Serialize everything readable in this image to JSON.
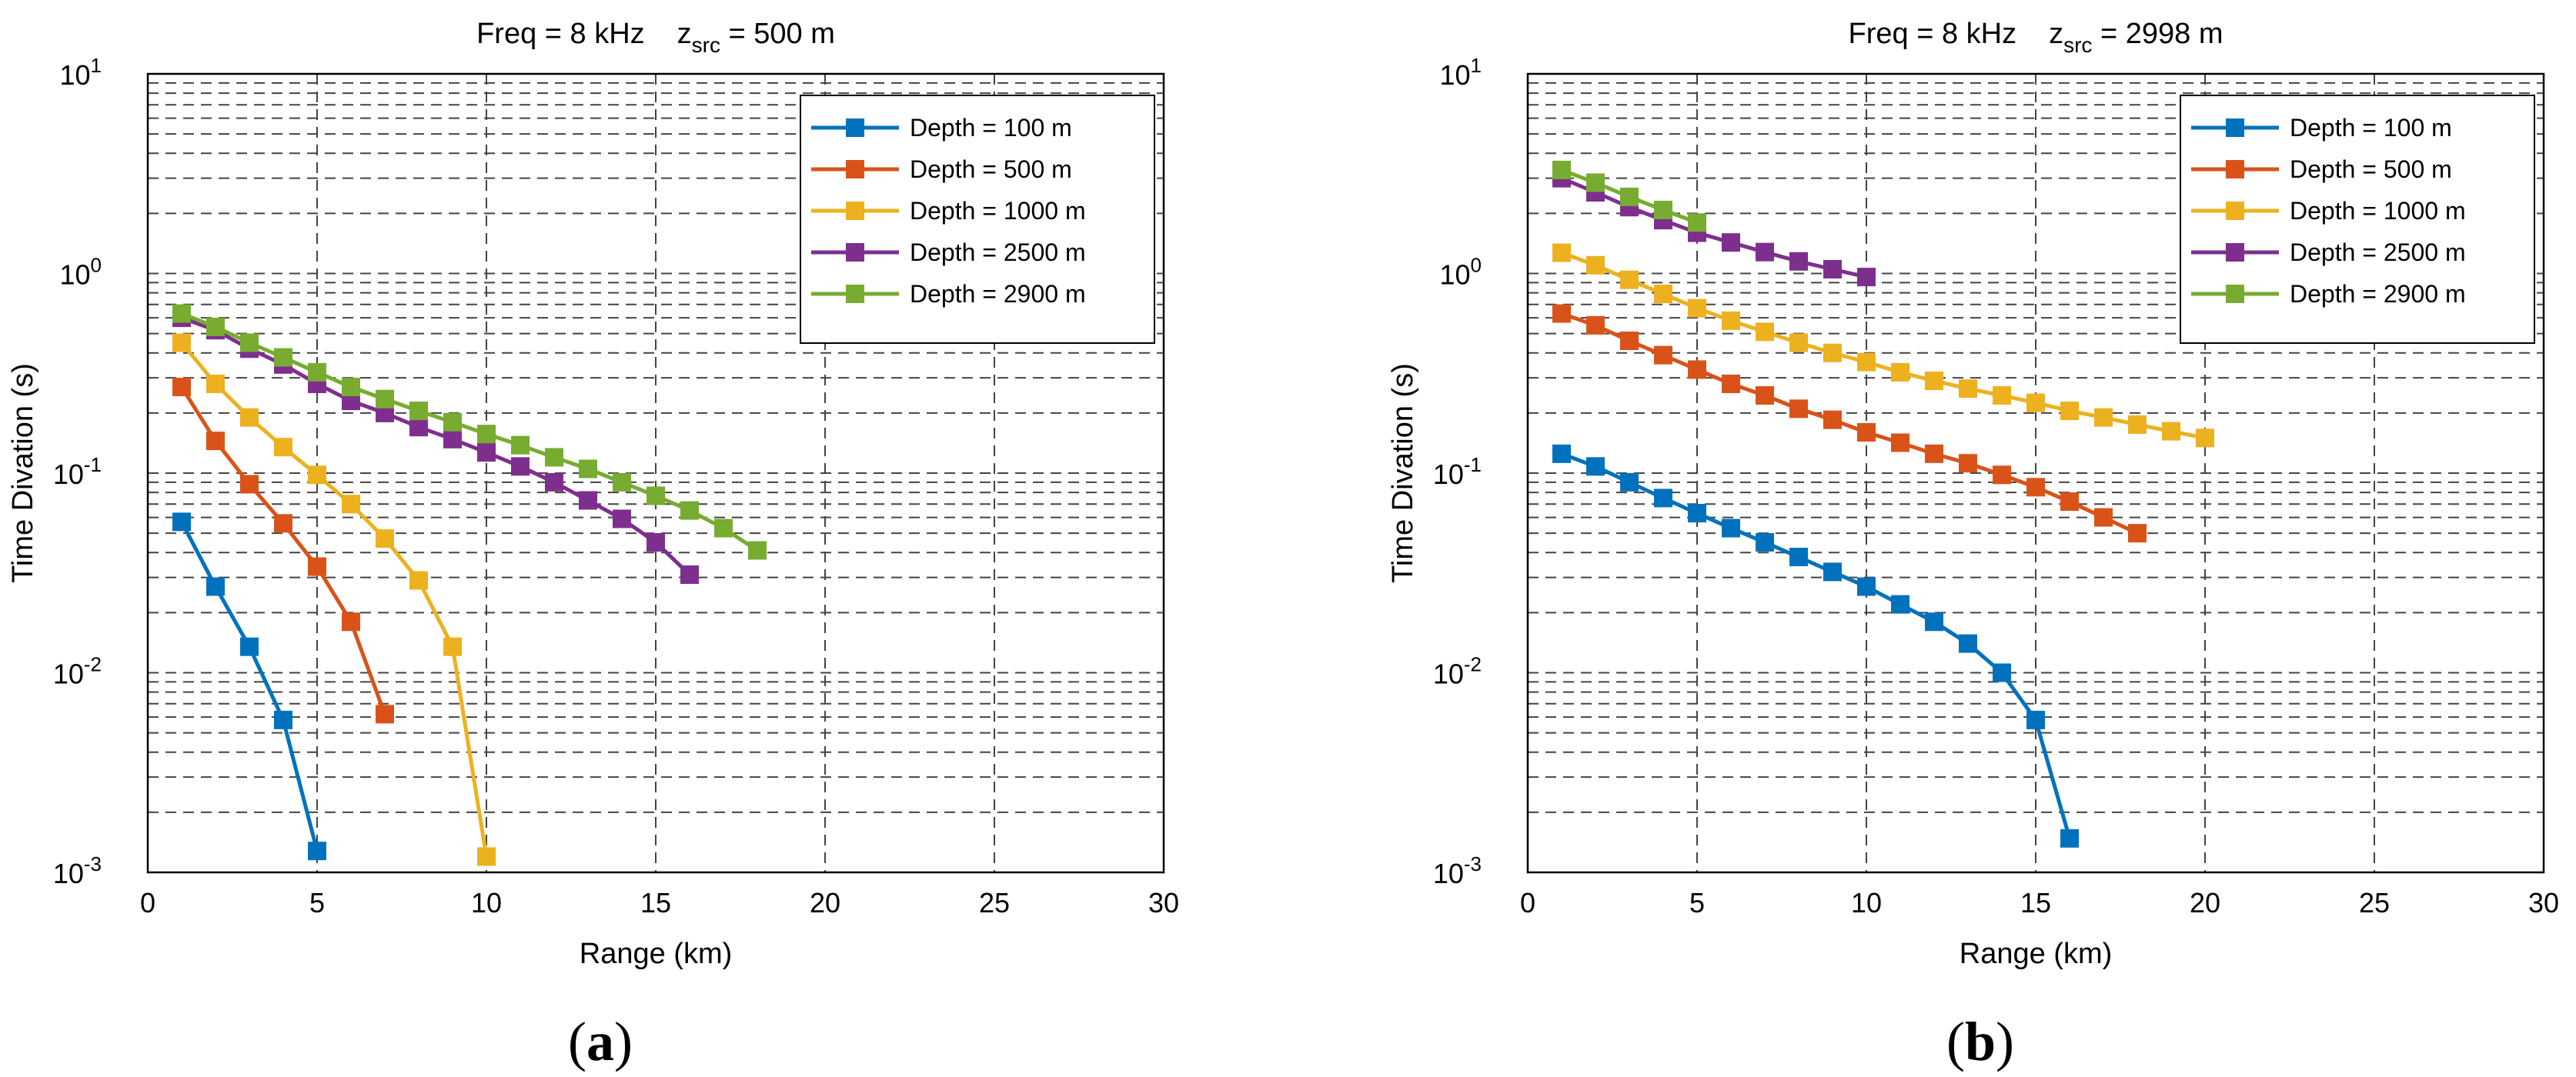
{
  "chart_data": [
    {
      "type": "line",
      "panel_label": "(a)",
      "panel_letter": "a",
      "title_prefix": "Freq = 8 kHz",
      "title_z": "z",
      "title_sub": "src",
      "title_suffix": " = 500 m",
      "xlabel": "Range (km)",
      "ylabel": "Time Divation (s)",
      "yscale": "log",
      "xlim": [
        0,
        30
      ],
      "ylim": [
        0.001,
        10
      ],
      "xticks": [
        0,
        5,
        10,
        15,
        20,
        25,
        30
      ],
      "yticks": [
        {
          "base": "10",
          "exp": "-3"
        },
        {
          "base": "10",
          "exp": "-2"
        },
        {
          "base": "10",
          "exp": "-1"
        },
        {
          "base": "10",
          "exp": "0"
        },
        {
          "base": "10",
          "exp": "1"
        }
      ],
      "grid": true,
      "legend_position": "top-right",
      "series": [
        {
          "name": "Depth = 100 m",
          "color": "#0072BD",
          "x": [
            1,
            2,
            3,
            4,
            5
          ],
          "values": [
            0.057,
            0.027,
            0.0135,
            0.0058,
            0.00128
          ]
        },
        {
          "name": "Depth = 500 m",
          "color": "#D95319",
          "x": [
            1,
            2,
            3,
            4,
            5,
            6,
            7
          ],
          "values": [
            0.27,
            0.145,
            0.088,
            0.056,
            0.034,
            0.018,
            0.0062
          ]
        },
        {
          "name": "Depth = 1000 m",
          "color": "#EDB120",
          "x": [
            1,
            2,
            3,
            4,
            5,
            6,
            7,
            8,
            9,
            10
          ],
          "values": [
            0.45,
            0.28,
            0.19,
            0.135,
            0.098,
            0.07,
            0.047,
            0.029,
            0.0135,
            0.0012
          ]
        },
        {
          "name": "Depth = 2500 m",
          "color": "#7E2F8E",
          "x": [
            1,
            2,
            3,
            4,
            5,
            6,
            7,
            8,
            9,
            10,
            11,
            12,
            13,
            14,
            15,
            16
          ],
          "values": [
            0.6,
            0.52,
            0.42,
            0.35,
            0.28,
            0.23,
            0.2,
            0.17,
            0.148,
            0.127,
            0.108,
            0.09,
            0.073,
            0.059,
            0.045,
            0.031
          ]
        },
        {
          "name": "Depth = 2900 m",
          "color": "#77AC30",
          "x": [
            1,
            2,
            3,
            4,
            5,
            6,
            7,
            8,
            9,
            10,
            11,
            12,
            13,
            14,
            15,
            16,
            17,
            18
          ],
          "values": [
            0.63,
            0.54,
            0.45,
            0.38,
            0.32,
            0.27,
            0.235,
            0.205,
            0.18,
            0.157,
            0.138,
            0.12,
            0.105,
            0.09,
            0.077,
            0.065,
            0.053,
            0.041
          ]
        }
      ]
    },
    {
      "type": "line",
      "panel_label": "(b)",
      "panel_letter": "b",
      "title_prefix": "Freq = 8 kHz",
      "title_z": "z",
      "title_sub": "src",
      "title_suffix": " = 2998 m",
      "xlabel": "Range (km)",
      "ylabel": "Time Divation (s)",
      "yscale": "log",
      "xlim": [
        0,
        30
      ],
      "ylim": [
        0.001,
        10
      ],
      "xticks": [
        0,
        5,
        10,
        15,
        20,
        25,
        30
      ],
      "yticks": [
        {
          "base": "10",
          "exp": "-3"
        },
        {
          "base": "10",
          "exp": "-2"
        },
        {
          "base": "10",
          "exp": "-1"
        },
        {
          "base": "10",
          "exp": "0"
        },
        {
          "base": "10",
          "exp": "1"
        }
      ],
      "grid": true,
      "legend_position": "top-right",
      "series": [
        {
          "name": "Depth = 100 m",
          "color": "#0072BD",
          "x": [
            1,
            2,
            3,
            4,
            5,
            6,
            7,
            8,
            9,
            10,
            11,
            12,
            13,
            14,
            15,
            16
          ],
          "values": [
            0.125,
            0.108,
            0.09,
            0.075,
            0.063,
            0.053,
            0.045,
            0.038,
            0.032,
            0.027,
            0.022,
            0.018,
            0.014,
            0.01,
            0.0058,
            0.00148
          ]
        },
        {
          "name": "Depth = 500 m",
          "color": "#D95319",
          "x": [
            1,
            2,
            3,
            4,
            5,
            6,
            7,
            8,
            9,
            10,
            11,
            12,
            13,
            14,
            15,
            16,
            17,
            18
          ],
          "values": [
            0.63,
            0.55,
            0.46,
            0.39,
            0.33,
            0.28,
            0.245,
            0.21,
            0.185,
            0.16,
            0.142,
            0.125,
            0.112,
            0.098,
            0.085,
            0.072,
            0.06,
            0.05
          ]
        },
        {
          "name": "Depth = 1000 m",
          "color": "#EDB120",
          "x": [
            1,
            2,
            3,
            4,
            5,
            6,
            7,
            8,
            9,
            10,
            11,
            12,
            13,
            14,
            15,
            16,
            17,
            18,
            19,
            20
          ],
          "values": [
            1.27,
            1.1,
            0.93,
            0.79,
            0.67,
            0.58,
            0.51,
            0.45,
            0.4,
            0.36,
            0.32,
            0.29,
            0.265,
            0.245,
            0.225,
            0.205,
            0.19,
            0.175,
            0.162,
            0.15
          ]
        },
        {
          "name": "Depth = 2500 m",
          "color": "#7E2F8E",
          "x": [
            1,
            2,
            3,
            4,
            5,
            6,
            7,
            8,
            9,
            10
          ],
          "values": [
            3.0,
            2.55,
            2.15,
            1.85,
            1.6,
            1.43,
            1.28,
            1.15,
            1.05,
            0.96
          ]
        },
        {
          "name": "Depth = 2900 m",
          "color": "#77AC30",
          "x": [
            1,
            2,
            3,
            4,
            5
          ],
          "values": [
            3.3,
            2.85,
            2.42,
            2.08,
            1.8
          ]
        }
      ]
    }
  ]
}
